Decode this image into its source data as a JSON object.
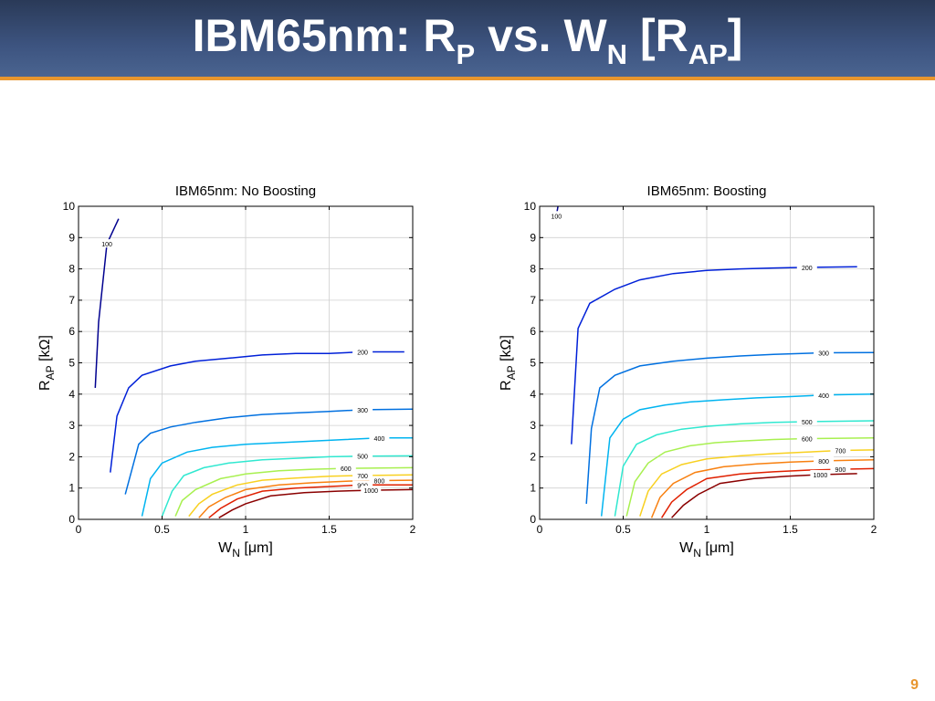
{
  "slide": {
    "title_main": "IBM65nm: R",
    "title_sub1": "P",
    "title_mid": " vs. W",
    "title_sub2": "N",
    "title_bracket": " [R",
    "title_sub3": "AP",
    "title_end": "]",
    "page_number": "9"
  },
  "colors": {
    "title_bar": "#34476b",
    "accent": "#e8962e",
    "page_number": "#e8962e"
  },
  "chart_data": [
    {
      "type": "contour",
      "title": "IBM65nm: No Boosting",
      "xlabel": "W_N [μm]",
      "ylabel": "R_AP [kΩ]",
      "xlim": [
        0,
        2
      ],
      "ylim": [
        0,
        10
      ],
      "xticks": [
        "0",
        "0.5",
        "1",
        "1.5",
        "2"
      ],
      "yticks": [
        "0",
        "1",
        "2",
        "3",
        "4",
        "5",
        "6",
        "7",
        "8",
        "9",
        "10"
      ],
      "grid": true,
      "levels": [
        {
          "level": 100,
          "label": "100",
          "color": "#00008f",
          "points": [
            [
              0.1,
              4.2
            ],
            [
              0.12,
              6.3
            ],
            [
              0.17,
              8.8
            ],
            [
              0.24,
              9.6
            ]
          ]
        },
        {
          "level": 200,
          "label": "200",
          "color": "#0020d8",
          "points": [
            [
              0.19,
              1.5
            ],
            [
              0.23,
              3.3
            ],
            [
              0.3,
              4.2
            ],
            [
              0.38,
              4.6
            ],
            [
              0.55,
              4.9
            ],
            [
              0.7,
              5.05
            ],
            [
              0.9,
              5.15
            ],
            [
              1.1,
              5.25
            ],
            [
              1.3,
              5.3
            ],
            [
              1.5,
              5.3
            ],
            [
              1.7,
              5.35
            ],
            [
              1.95,
              5.35
            ]
          ]
        },
        {
          "level": 300,
          "label": "300",
          "color": "#0070e0",
          "points": [
            [
              0.28,
              0.8
            ],
            [
              0.36,
              2.4
            ],
            [
              0.43,
              2.75
            ],
            [
              0.55,
              2.95
            ],
            [
              0.7,
              3.1
            ],
            [
              0.9,
              3.25
            ],
            [
              1.1,
              3.35
            ],
            [
              1.3,
              3.4
            ],
            [
              1.5,
              3.45
            ],
            [
              1.7,
              3.5
            ],
            [
              2.0,
              3.52
            ]
          ]
        },
        {
          "level": 400,
          "label": "400",
          "color": "#00b4f0",
          "points": [
            [
              0.38,
              0.1
            ],
            [
              0.43,
              1.3
            ],
            [
              0.5,
              1.8
            ],
            [
              0.65,
              2.15
            ],
            [
              0.8,
              2.3
            ],
            [
              1.0,
              2.4
            ],
            [
              1.2,
              2.45
            ],
            [
              1.4,
              2.5
            ],
            [
              1.6,
              2.55
            ],
            [
              1.8,
              2.6
            ],
            [
              2.0,
              2.6
            ]
          ]
        },
        {
          "level": 500,
          "label": "500",
          "color": "#30e8d0",
          "points": [
            [
              0.5,
              0.1
            ],
            [
              0.56,
              0.9
            ],
            [
              0.63,
              1.4
            ],
            [
              0.75,
              1.65
            ],
            [
              0.9,
              1.8
            ],
            [
              1.1,
              1.9
            ],
            [
              1.3,
              1.95
            ],
            [
              1.5,
              2.0
            ],
            [
              1.7,
              2.02
            ],
            [
              2.0,
              2.03
            ]
          ]
        },
        {
          "level": 600,
          "label": "600",
          "color": "#a8f050",
          "points": [
            [
              0.58,
              0.1
            ],
            [
              0.62,
              0.6
            ],
            [
              0.7,
              0.95
            ],
            [
              0.85,
              1.3
            ],
            [
              1.0,
              1.45
            ],
            [
              1.2,
              1.55
            ],
            [
              1.4,
              1.6
            ],
            [
              1.6,
              1.63
            ],
            [
              2.0,
              1.65
            ]
          ]
        },
        {
          "level": 700,
          "label": "700",
          "color": "#f8d020",
          "points": [
            [
              0.66,
              0.1
            ],
            [
              0.72,
              0.5
            ],
            [
              0.8,
              0.8
            ],
            [
              0.95,
              1.1
            ],
            [
              1.1,
              1.25
            ],
            [
              1.3,
              1.32
            ],
            [
              1.5,
              1.38
            ],
            [
              1.7,
              1.4
            ],
            [
              2.0,
              1.42
            ]
          ]
        },
        {
          "level": 800,
          "label": "800",
          "color": "#f88010",
          "points": [
            [
              0.72,
              0.05
            ],
            [
              0.78,
              0.4
            ],
            [
              0.88,
              0.7
            ],
            [
              1.0,
              0.95
            ],
            [
              1.2,
              1.1
            ],
            [
              1.4,
              1.17
            ],
            [
              1.6,
              1.22
            ],
            [
              1.8,
              1.24
            ],
            [
              2.0,
              1.25
            ]
          ]
        },
        {
          "level": 900,
          "label": "900",
          "color": "#e02000",
          "points": [
            [
              0.78,
              0.05
            ],
            [
              0.85,
              0.35
            ],
            [
              0.95,
              0.65
            ],
            [
              1.1,
              0.9
            ],
            [
              1.3,
              1.0
            ],
            [
              1.5,
              1.05
            ],
            [
              1.7,
              1.1
            ],
            [
              2.0,
              1.1
            ]
          ]
        },
        {
          "level": 1000,
          "label": "1000",
          "color": "#8a0000",
          "points": [
            [
              0.84,
              0.05
            ],
            [
              0.92,
              0.3
            ],
            [
              1.0,
              0.5
            ],
            [
              1.15,
              0.75
            ],
            [
              1.35,
              0.85
            ],
            [
              1.55,
              0.9
            ],
            [
              1.75,
              0.93
            ],
            [
              2.0,
              0.95
            ]
          ]
        }
      ]
    },
    {
      "type": "contour",
      "title": "IBM65nm: Boosting",
      "xlabel": "W_N [μm]",
      "ylabel": "R_AP [kΩ]",
      "xlim": [
        0,
        2
      ],
      "ylim": [
        0,
        10
      ],
      "xticks": [
        "0",
        "0.5",
        "1",
        "1.5",
        "2"
      ],
      "yticks": [
        "0",
        "1",
        "2",
        "3",
        "4",
        "5",
        "6",
        "7",
        "8",
        "9",
        "10"
      ],
      "grid": true,
      "levels": [
        {
          "level": 100,
          "label": "100",
          "color": "#00008f",
          "points": [
            [
              0.1,
              9.7
            ],
            [
              0.11,
              10.0
            ]
          ]
        },
        {
          "level": 200,
          "label": "200",
          "color": "#0020d8",
          "points": [
            [
              0.19,
              2.4
            ],
            [
              0.23,
              6.1
            ],
            [
              0.3,
              6.9
            ],
            [
              0.45,
              7.35
            ],
            [
              0.6,
              7.65
            ],
            [
              0.8,
              7.85
            ],
            [
              1.0,
              7.95
            ],
            [
              1.2,
              8.0
            ],
            [
              1.4,
              8.03
            ],
            [
              1.6,
              8.05
            ],
            [
              1.9,
              8.07
            ]
          ]
        },
        {
          "level": 300,
          "label": "300",
          "color": "#0070e0",
          "points": [
            [
              0.28,
              0.5
            ],
            [
              0.31,
              2.9
            ],
            [
              0.36,
              4.2
            ],
            [
              0.45,
              4.6
            ],
            [
              0.6,
              4.9
            ],
            [
              0.8,
              5.05
            ],
            [
              1.0,
              5.15
            ],
            [
              1.2,
              5.22
            ],
            [
              1.4,
              5.27
            ],
            [
              1.7,
              5.32
            ],
            [
              2.0,
              5.33
            ]
          ]
        },
        {
          "level": 400,
          "label": "400",
          "color": "#00b4f0",
          "points": [
            [
              0.37,
              0.1
            ],
            [
              0.42,
              2.6
            ],
            [
              0.5,
              3.2
            ],
            [
              0.6,
              3.5
            ],
            [
              0.75,
              3.65
            ],
            [
              0.9,
              3.75
            ],
            [
              1.1,
              3.82
            ],
            [
              1.3,
              3.88
            ],
            [
              1.5,
              3.92
            ],
            [
              1.7,
              3.97
            ],
            [
              2.0,
              4.0
            ]
          ]
        },
        {
          "level": 500,
          "label": "500",
          "color": "#30e8d0",
          "points": [
            [
              0.45,
              0.1
            ],
            [
              0.5,
              1.7
            ],
            [
              0.58,
              2.4
            ],
            [
              0.7,
              2.7
            ],
            [
              0.85,
              2.88
            ],
            [
              1.0,
              2.97
            ],
            [
              1.2,
              3.05
            ],
            [
              1.4,
              3.1
            ],
            [
              1.6,
              3.12
            ],
            [
              2.0,
              3.15
            ]
          ]
        },
        {
          "level": 600,
          "label": "600",
          "color": "#a8f050",
          "points": [
            [
              0.52,
              0.1
            ],
            [
              0.57,
              1.2
            ],
            [
              0.65,
              1.8
            ],
            [
              0.75,
              2.15
            ],
            [
              0.9,
              2.35
            ],
            [
              1.05,
              2.45
            ],
            [
              1.2,
              2.5
            ],
            [
              1.4,
              2.55
            ],
            [
              1.6,
              2.58
            ],
            [
              2.0,
              2.6
            ]
          ]
        },
        {
          "level": 700,
          "label": "700",
          "color": "#f8d020",
          "points": [
            [
              0.6,
              0.1
            ],
            [
              0.65,
              0.9
            ],
            [
              0.73,
              1.45
            ],
            [
              0.85,
              1.75
            ],
            [
              1.0,
              1.93
            ],
            [
              1.2,
              2.03
            ],
            [
              1.4,
              2.1
            ],
            [
              1.6,
              2.15
            ],
            [
              1.8,
              2.2
            ],
            [
              2.0,
              2.22
            ]
          ]
        },
        {
          "level": 800,
          "label": "800",
          "color": "#f88010",
          "points": [
            [
              0.67,
              0.05
            ],
            [
              0.72,
              0.7
            ],
            [
              0.8,
              1.15
            ],
            [
              0.93,
              1.5
            ],
            [
              1.1,
              1.68
            ],
            [
              1.3,
              1.77
            ],
            [
              1.5,
              1.83
            ],
            [
              1.7,
              1.87
            ],
            [
              2.0,
              1.9
            ]
          ]
        },
        {
          "level": 900,
          "label": "900",
          "color": "#e02000",
          "points": [
            [
              0.73,
              0.05
            ],
            [
              0.79,
              0.55
            ],
            [
              0.88,
              0.95
            ],
            [
              1.0,
              1.3
            ],
            [
              1.2,
              1.45
            ],
            [
              1.4,
              1.52
            ],
            [
              1.6,
              1.57
            ],
            [
              1.8,
              1.6
            ],
            [
              2.0,
              1.62
            ]
          ]
        },
        {
          "level": 1000,
          "label": "1000",
          "color": "#8a0000",
          "points": [
            [
              0.79,
              0.05
            ],
            [
              0.86,
              0.45
            ],
            [
              0.95,
              0.8
            ],
            [
              1.08,
              1.15
            ],
            [
              1.28,
              1.3
            ],
            [
              1.48,
              1.38
            ],
            [
              1.68,
              1.43
            ],
            [
              1.9,
              1.46
            ]
          ]
        }
      ]
    }
  ]
}
